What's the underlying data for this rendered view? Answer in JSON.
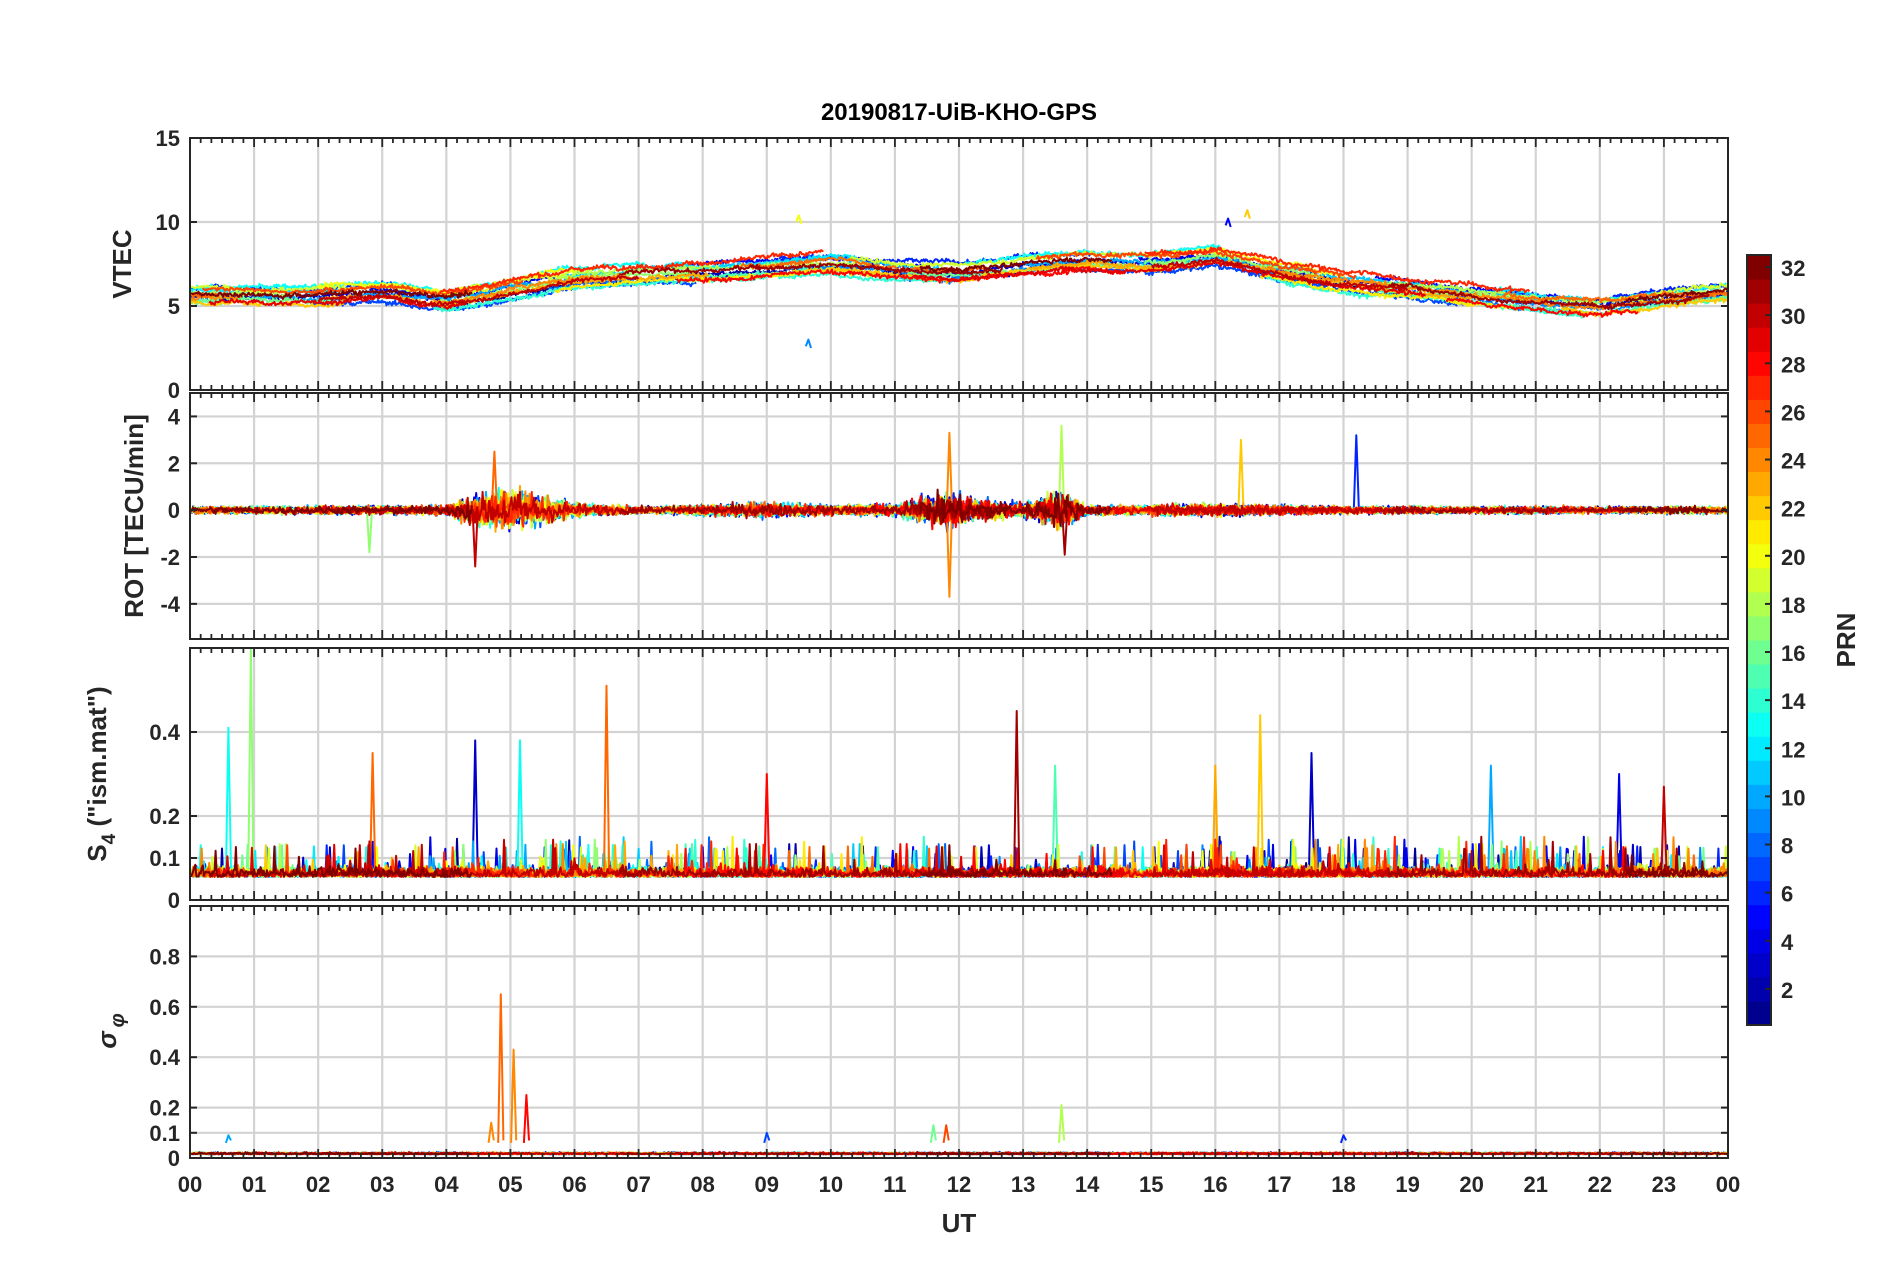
{
  "chart_data": {
    "type": "line",
    "title": "20190817-UiB-KHO-GPS",
    "xlabel": "UT",
    "x_tick_labels": [
      "00",
      "01",
      "02",
      "03",
      "04",
      "05",
      "06",
      "07",
      "08",
      "09",
      "10",
      "11",
      "12",
      "13",
      "14",
      "15",
      "16",
      "17",
      "18",
      "19",
      "20",
      "21",
      "22",
      "23",
      "00"
    ],
    "xlim_hours": [
      0,
      24
    ],
    "grid": true,
    "colorbar": {
      "label": "PRN",
      "range": [
        1,
        32
      ],
      "tick_labels": [
        "2",
        "4",
        "6",
        "8",
        "10",
        "12",
        "14",
        "16",
        "18",
        "20",
        "22",
        "24",
        "26",
        "28",
        "30",
        "32"
      ],
      "colormap": "jet",
      "colormap_stops": [
        "#00008f",
        "#0000ff",
        "#0080ff",
        "#00ffff",
        "#80ff80",
        "#ffff00",
        "#ff8000",
        "#ff0000",
        "#800000"
      ]
    },
    "panels": [
      {
        "id": "vtec",
        "ylabel": "VTEC",
        "ylim": [
          0,
          15
        ],
        "y_ticks": [
          0,
          5,
          10,
          15
        ],
        "y_tick_labels": [
          "0",
          "5",
          "10",
          "15"
        ],
        "approx_baseline": [
          [
            0,
            5.6
          ],
          [
            2,
            5.6
          ],
          [
            3,
            5.8
          ],
          [
            4,
            5.3
          ],
          [
            5,
            6.0
          ],
          [
            6,
            6.7
          ],
          [
            7,
            7.0
          ],
          [
            8,
            7.1
          ],
          [
            9,
            7.3
          ],
          [
            10,
            7.6
          ],
          [
            11,
            7.2
          ],
          [
            12,
            7.0
          ],
          [
            13,
            7.4
          ],
          [
            14,
            7.7
          ],
          [
            15,
            7.6
          ],
          [
            16,
            7.9
          ],
          [
            17,
            7.1
          ],
          [
            18,
            6.5
          ],
          [
            19,
            6.1
          ],
          [
            20,
            5.7
          ],
          [
            21,
            5.3
          ],
          [
            22,
            5.0
          ],
          [
            23,
            5.4
          ],
          [
            24,
            5.8
          ]
        ],
        "notable_values": [
          {
            "x": 9.5,
            "y": 10.4,
            "prn": 20
          },
          {
            "x": 9.65,
            "y": 3.0,
            "prn": 9
          },
          {
            "x": 16.2,
            "y": 10.2,
            "prn": 5
          },
          {
            "x": 16.5,
            "y": 10.7,
            "prn": 22
          }
        ]
      },
      {
        "id": "rot",
        "ylabel": "ROT [TECU/min]",
        "ylim": [
          -5.5,
          5
        ],
        "y_ticks": [
          -4,
          -2,
          0,
          2,
          4
        ],
        "y_tick_labels": [
          "-4",
          "-2",
          "0",
          "2",
          "4"
        ],
        "approx_noise_amplitude": [
          [
            0,
            0.3
          ],
          [
            4,
            0.4
          ],
          [
            4.5,
            1.3
          ],
          [
            5,
            1.8
          ],
          [
            5.5,
            1.2
          ],
          [
            6,
            0.6
          ],
          [
            7,
            0.3
          ],
          [
            9,
            0.6
          ],
          [
            10,
            0.4
          ],
          [
            11,
            0.5
          ],
          [
            11.8,
            1.6
          ],
          [
            12.2,
            0.9
          ],
          [
            13,
            0.6
          ],
          [
            13.6,
            1.6
          ],
          [
            14,
            0.4
          ],
          [
            16,
            0.5
          ],
          [
            17,
            0.4
          ],
          [
            18,
            0.3
          ],
          [
            24,
            0.3
          ]
        ],
        "notable_values": [
          {
            "x": 4.75,
            "y": 2.5,
            "prn": 25
          },
          {
            "x": 4.45,
            "y": -2.4,
            "prn": 30
          },
          {
            "x": 11.85,
            "y": 3.3,
            "prn": 24
          },
          {
            "x": 11.85,
            "y": -3.7,
            "prn": 24
          },
          {
            "x": 13.6,
            "y": 3.6,
            "prn": 18
          },
          {
            "x": 13.65,
            "y": -1.9,
            "prn": 31
          },
          {
            "x": 16.4,
            "y": 3.0,
            "prn": 22
          },
          {
            "x": 18.2,
            "y": 3.2,
            "prn": 6
          },
          {
            "x": 2.8,
            "y": -1.8,
            "prn": 17
          }
        ]
      },
      {
        "id": "s4",
        "ylabel": "S4 (\"ism.mat\")",
        "ylabel_parts": {
          "main": "S",
          "sub": "4",
          "rest": " (\"ism.mat\")"
        },
        "ylim": [
          0,
          0.6
        ],
        "y_ticks": [
          0,
          0.1,
          0.2,
          0.4
        ],
        "y_tick_labels": [
          "0",
          "0.1",
          "0.2",
          "0.4"
        ],
        "approx_baseline": [
          [
            0,
            0.07
          ],
          [
            24,
            0.07
          ]
        ],
        "notable_values": [
          {
            "x": 0.95,
            "y": 0.6,
            "prn": 17
          },
          {
            "x": 0.6,
            "y": 0.41,
            "prn": 13
          },
          {
            "x": 2.85,
            "y": 0.35,
            "prn": 25
          },
          {
            "x": 4.45,
            "y": 0.38,
            "prn": 3
          },
          {
            "x": 5.15,
            "y": 0.38,
            "prn": 13
          },
          {
            "x": 6.5,
            "y": 0.51,
            "prn": 25
          },
          {
            "x": 9.0,
            "y": 0.3,
            "prn": 28
          },
          {
            "x": 12.9,
            "y": 0.45,
            "prn": 31
          },
          {
            "x": 13.5,
            "y": 0.32,
            "prn": 15
          },
          {
            "x": 16.0,
            "y": 0.32,
            "prn": 23
          },
          {
            "x": 16.7,
            "y": 0.44,
            "prn": 22
          },
          {
            "x": 17.5,
            "y": 0.35,
            "prn": 3
          },
          {
            "x": 20.3,
            "y": 0.32,
            "prn": 10
          },
          {
            "x": 22.3,
            "y": 0.3,
            "prn": 4
          },
          {
            "x": 23.0,
            "y": 0.27,
            "prn": 30
          }
        ],
        "spike_count": 120
      },
      {
        "id": "sigma_phi",
        "ylabel": "σ φ",
        "ylabel_parts": {
          "main": "σ",
          "sub": "φ"
        },
        "ylim": [
          0,
          1
        ],
        "y_ticks": [
          0,
          0.1,
          0.2,
          0.4,
          0.6,
          0.8
        ],
        "y_tick_labels": [
          "0",
          "0.1",
          "0.2",
          "0.4",
          "0.6",
          "0.8"
        ],
        "approx_baseline": [
          [
            0,
            0.02
          ],
          [
            24,
            0.02
          ]
        ],
        "notable_values": [
          {
            "x": 4.85,
            "y": 0.65,
            "prn": 25
          },
          {
            "x": 5.05,
            "y": 0.43,
            "prn": 24
          },
          {
            "x": 5.25,
            "y": 0.25,
            "prn": 28
          },
          {
            "x": 4.7,
            "y": 0.14,
            "prn": 24
          },
          {
            "x": 0.6,
            "y": 0.09,
            "prn": 10
          },
          {
            "x": 9.0,
            "y": 0.1,
            "prn": 7
          },
          {
            "x": 11.6,
            "y": 0.13,
            "prn": 16
          },
          {
            "x": 11.8,
            "y": 0.13,
            "prn": 26
          },
          {
            "x": 13.6,
            "y": 0.21,
            "prn": 18
          },
          {
            "x": 18.0,
            "y": 0.09,
            "prn": 6
          }
        ]
      }
    ],
    "prns": [
      1,
      2,
      3,
      4,
      5,
      6,
      7,
      8,
      9,
      10,
      11,
      12,
      13,
      14,
      15,
      16,
      17,
      18,
      19,
      20,
      21,
      22,
      23,
      24,
      25,
      26,
      27,
      28,
      29,
      30,
      31,
      32
    ]
  }
}
